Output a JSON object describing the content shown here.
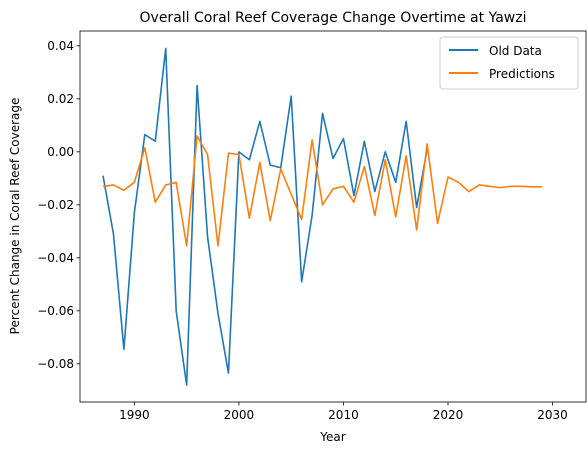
{
  "chart_data": {
    "type": "line",
    "title": "Overall Coral Reef Coverage Change Overtime at Yawzi",
    "xlabel": "Year",
    "ylabel": "Percent Change in Coral Reef Coverage",
    "xlim": [
      1984.8,
      2033.2
    ],
    "ylim": [
      -0.0944,
      0.0456
    ],
    "xticks": [
      1990,
      2000,
      2010,
      2020,
      2030
    ],
    "xtick_labels": [
      "1990",
      "2000",
      "2010",
      "2020",
      "2030"
    ],
    "yticks": [
      -0.08,
      -0.06,
      -0.04,
      -0.02,
      0.0,
      0.02,
      0.04
    ],
    "ytick_labels": [
      "−0.08",
      "−0.06",
      "−0.04",
      "−0.02",
      "0.00",
      "0.02",
      "0.04"
    ],
    "grid": false,
    "legend_position": "top-right",
    "series": [
      {
        "name": "Old Data",
        "color": "#1f77b4",
        "x": [
          1987,
          1988,
          1989,
          1990,
          1991,
          1992,
          1993,
          1994,
          1995,
          1996,
          1997,
          1998,
          1999,
          2000,
          2001,
          2002,
          2003,
          2004,
          2005,
          2006,
          2007,
          2008,
          2009,
          2010,
          2011,
          2012,
          2013,
          2014,
          2015,
          2016,
          2017,
          2018,
          2019,
          2020,
          2021
        ],
        "values": [
          -0.009,
          -0.031,
          -0.0745,
          -0.023,
          0.0065,
          0.004,
          0.039,
          -0.06,
          -0.088,
          0.025,
          -0.032,
          -0.061,
          -0.0835,
          0.0,
          -0.003,
          0.0115,
          -0.005,
          -0.006,
          0.021,
          -0.049,
          -0.024,
          0.0145,
          -0.0025,
          0.005,
          -0.0165,
          0.004,
          -0.015,
          0.0,
          -0.0115,
          0.0115,
          -0.021,
          0.001,
          null,
          null,
          null
        ]
      },
      {
        "name": "Predictions",
        "color": "#ff7f0e",
        "x": [
          1987,
          1988,
          1989,
          1990,
          1991,
          1992,
          1993,
          1994,
          1995,
          1996,
          1997,
          1998,
          1999,
          2000,
          2001,
          2002,
          2003,
          2004,
          2005,
          2006,
          2007,
          2008,
          2009,
          2010,
          2011,
          2012,
          2013,
          2014,
          2015,
          2016,
          2017,
          2018,
          2019,
          2020,
          2021,
          2022,
          2023,
          2024,
          2025,
          2026,
          2027,
          2028,
          2029,
          2030,
          2031
        ],
        "values": [
          -0.013,
          -0.0125,
          -0.0145,
          -0.0115,
          0.0015,
          -0.019,
          -0.0125,
          -0.0115,
          -0.0355,
          0.006,
          -0.001,
          -0.0355,
          -0.0005,
          -0.001,
          -0.025,
          -0.004,
          -0.026,
          -0.0065,
          -0.016,
          -0.0255,
          0.0045,
          -0.02,
          -0.014,
          -0.013,
          -0.019,
          -0.0055,
          -0.024,
          -0.003,
          -0.0245,
          -0.0015,
          -0.0295,
          0.003,
          -0.027,
          -0.0095,
          -0.0115,
          -0.015,
          -0.0125,
          -0.013,
          -0.0135,
          -0.013,
          -0.013,
          -0.0132,
          -0.0132,
          null,
          null
        ]
      }
    ]
  }
}
